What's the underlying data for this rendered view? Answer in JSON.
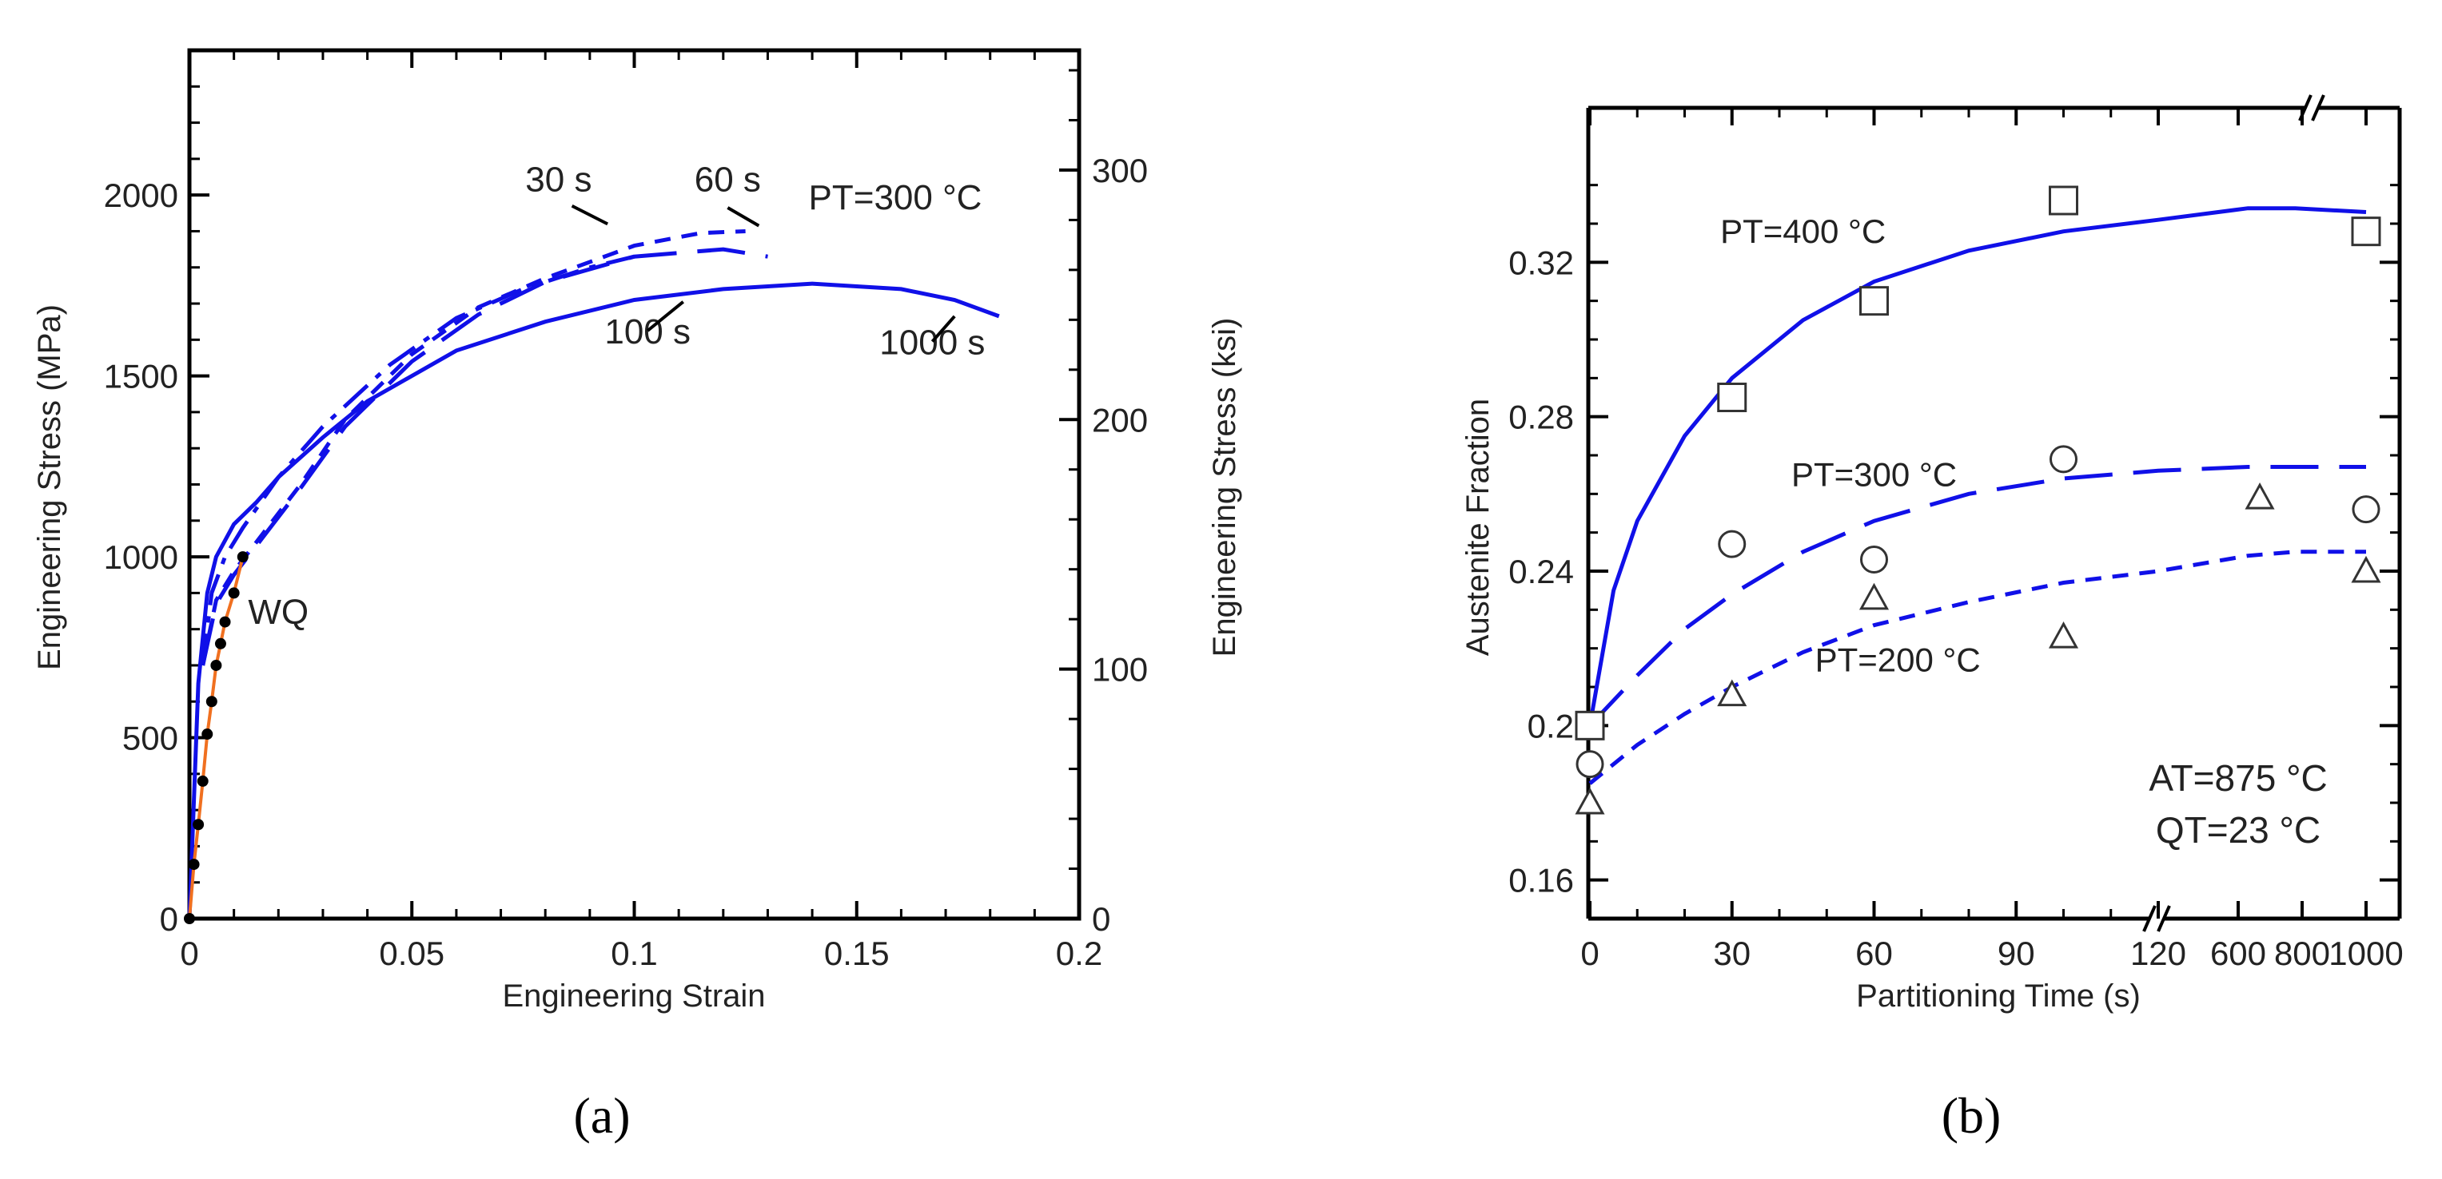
{
  "colors": {
    "curve": "#1010e8",
    "orange": "#f07020",
    "axis": "#000000",
    "marker": "#333333"
  },
  "panel_labels": {
    "a": "(a)",
    "b": "(b)"
  },
  "chart_data": [
    {
      "id": "a",
      "type": "line",
      "xlabel": "Engineering Strain",
      "ylabel": "Engineering Stress (MPa)",
      "y2label": "Engineering Stress (ksi)",
      "xlim": [
        0,
        0.2
      ],
      "ylim": [
        0,
        2400
      ],
      "y2lim": [
        0,
        348
      ],
      "xticks": [
        0,
        0.05,
        0.1,
        0.15,
        0.2
      ],
      "xticklabels": [
        "0",
        "0.05",
        "0.1",
        "0.15",
        "0.2"
      ],
      "yticks": [
        0,
        500,
        1000,
        1500,
        2000
      ],
      "yticklabels": [
        "0",
        "500",
        "1000",
        "1500",
        "2000"
      ],
      "y2ticks": [
        0,
        100,
        200,
        300
      ],
      "y2ticklabels": [
        "0",
        "100",
        "200",
        "300"
      ],
      "annotation": "PT=300 °C",
      "series": [
        {
          "name": "30 s",
          "dash": "dashdot",
          "x": [
            0.003,
            0.005,
            0.008,
            0.012,
            0.02,
            0.03,
            0.045,
            0.06,
            0.075,
            0.09,
            0.1
          ],
          "y": [
            700,
            900,
            1000,
            1080,
            1220,
            1360,
            1530,
            1660,
            1740,
            1800,
            1830
          ]
        },
        {
          "name": "60 s",
          "dash": "dashed",
          "x": [
            0.003,
            0.006,
            0.01,
            0.015,
            0.025,
            0.035,
            0.05,
            0.065,
            0.08,
            0.1,
            0.115,
            0.125
          ],
          "y": [
            700,
            880,
            960,
            1040,
            1200,
            1380,
            1560,
            1690,
            1770,
            1860,
            1895,
            1900
          ]
        },
        {
          "name": "100 s",
          "dash": "longdash",
          "x": [
            0.003,
            0.006,
            0.01,
            0.015,
            0.025,
            0.035,
            0.05,
            0.065,
            0.08,
            0.1,
            0.12,
            0.13
          ],
          "y": [
            700,
            870,
            950,
            1030,
            1190,
            1360,
            1540,
            1670,
            1760,
            1830,
            1850,
            1830
          ]
        },
        {
          "name": "1000 s",
          "dash": "solid",
          "x": [
            0,
            0.002,
            0.004,
            0.006,
            0.01,
            0.015,
            0.02,
            0.03,
            0.04,
            0.06,
            0.08,
            0.1,
            0.12,
            0.14,
            0.16,
            0.172,
            0.182
          ],
          "y": [
            0,
            650,
            900,
            1000,
            1090,
            1150,
            1220,
            1330,
            1430,
            1570,
            1650,
            1710,
            1740,
            1755,
            1740,
            1710,
            1665
          ]
        },
        {
          "name": "WQ",
          "dash": "solid",
          "color": "orange",
          "x": [
            0,
            0.001,
            0.002,
            0.003,
            0.004,
            0.005,
            0.006,
            0.007,
            0.008,
            0.01,
            0.012
          ],
          "y": [
            0,
            150,
            260,
            380,
            510,
            600,
            700,
            760,
            820,
            900,
            1000
          ],
          "markers": true
        }
      ],
      "labels": [
        {
          "text": "30 s",
          "x": 0.083,
          "y": 2010
        },
        {
          "text": "60 s",
          "x": 0.121,
          "y": 2010
        },
        {
          "text": "100 s",
          "x": 0.103,
          "y": 1590
        },
        {
          "text": "1000 s",
          "x": 0.167,
          "y": 1560
        },
        {
          "text": "WQ",
          "x": 0.02,
          "y": 815
        }
      ]
    },
    {
      "id": "b",
      "type": "line",
      "xlabel": "Partitioning Time (s)",
      "ylabel": "Austenite Fraction",
      "xlim": [
        0,
        1000
      ],
      "ylim": [
        0.15,
        0.36
      ],
      "xticklabels": [
        "0",
        "30",
        "60",
        "90",
        "120",
        "600",
        "800",
        "1000"
      ],
      "yticks": [
        0.16,
        0.2,
        0.24,
        0.28,
        0.32
      ],
      "yticklabels": [
        "0.16",
        "0.2",
        "0.24",
        "0.28",
        "0.32"
      ],
      "axis_break": "x between 120 and 600 s",
      "annotation": [
        "AT=875 °C",
        "QT=23 °C"
      ],
      "series": [
        {
          "name": "PT=400 °C",
          "dash": "solid",
          "marker": "square",
          "points_t": [
            0,
            30,
            60,
            100,
            1000
          ],
          "points_y": [
            0.2,
            0.285,
            0.31,
            0.336,
            0.328
          ],
          "model_t": [
            0,
            5,
            10,
            20,
            30,
            45,
            60,
            80,
            100,
            120,
            500,
            700,
            1000
          ],
          "model_y": [
            0.2,
            0.235,
            0.253,
            0.275,
            0.29,
            0.305,
            0.315,
            0.323,
            0.328,
            0.331,
            0.334,
            0.334,
            0.333
          ]
        },
        {
          "name": "PT=300 °C",
          "dash": "longdash",
          "marker": "circle",
          "points_t": [
            0,
            30,
            60,
            100,
            1000
          ],
          "points_y": [
            0.19,
            0.247,
            0.243,
            0.269,
            0.256
          ],
          "model_t": [
            0,
            10,
            20,
            30,
            45,
            60,
            80,
            100,
            120,
            500,
            700,
            1000
          ],
          "model_y": [
            0.2,
            0.213,
            0.225,
            0.234,
            0.245,
            0.253,
            0.26,
            0.264,
            0.266,
            0.267,
            0.267,
            0.267
          ]
        },
        {
          "name": "PT=200 °C",
          "dash": "dashed",
          "marker": "triangle",
          "points_t": [
            0,
            30,
            60,
            100,
            550,
            1000
          ],
          "points_y": [
            0.18,
            0.208,
            0.233,
            0.223,
            0.259,
            0.24
          ],
          "model_t": [
            0,
            10,
            20,
            30,
            45,
            60,
            80,
            100,
            120,
            500,
            700,
            1000
          ],
          "model_y": [
            0.185,
            0.195,
            0.203,
            0.21,
            0.219,
            0.226,
            0.232,
            0.237,
            0.24,
            0.244,
            0.245,
            0.245
          ]
        }
      ],
      "labels": [
        {
          "text": "PT=400 °C",
          "t": 45,
          "y": 0.325
        },
        {
          "text": "PT=300 °C",
          "t": 60,
          "y": 0.262
        },
        {
          "text": "PT=200 °C",
          "t": 65,
          "y": 0.214
        }
      ]
    }
  ]
}
